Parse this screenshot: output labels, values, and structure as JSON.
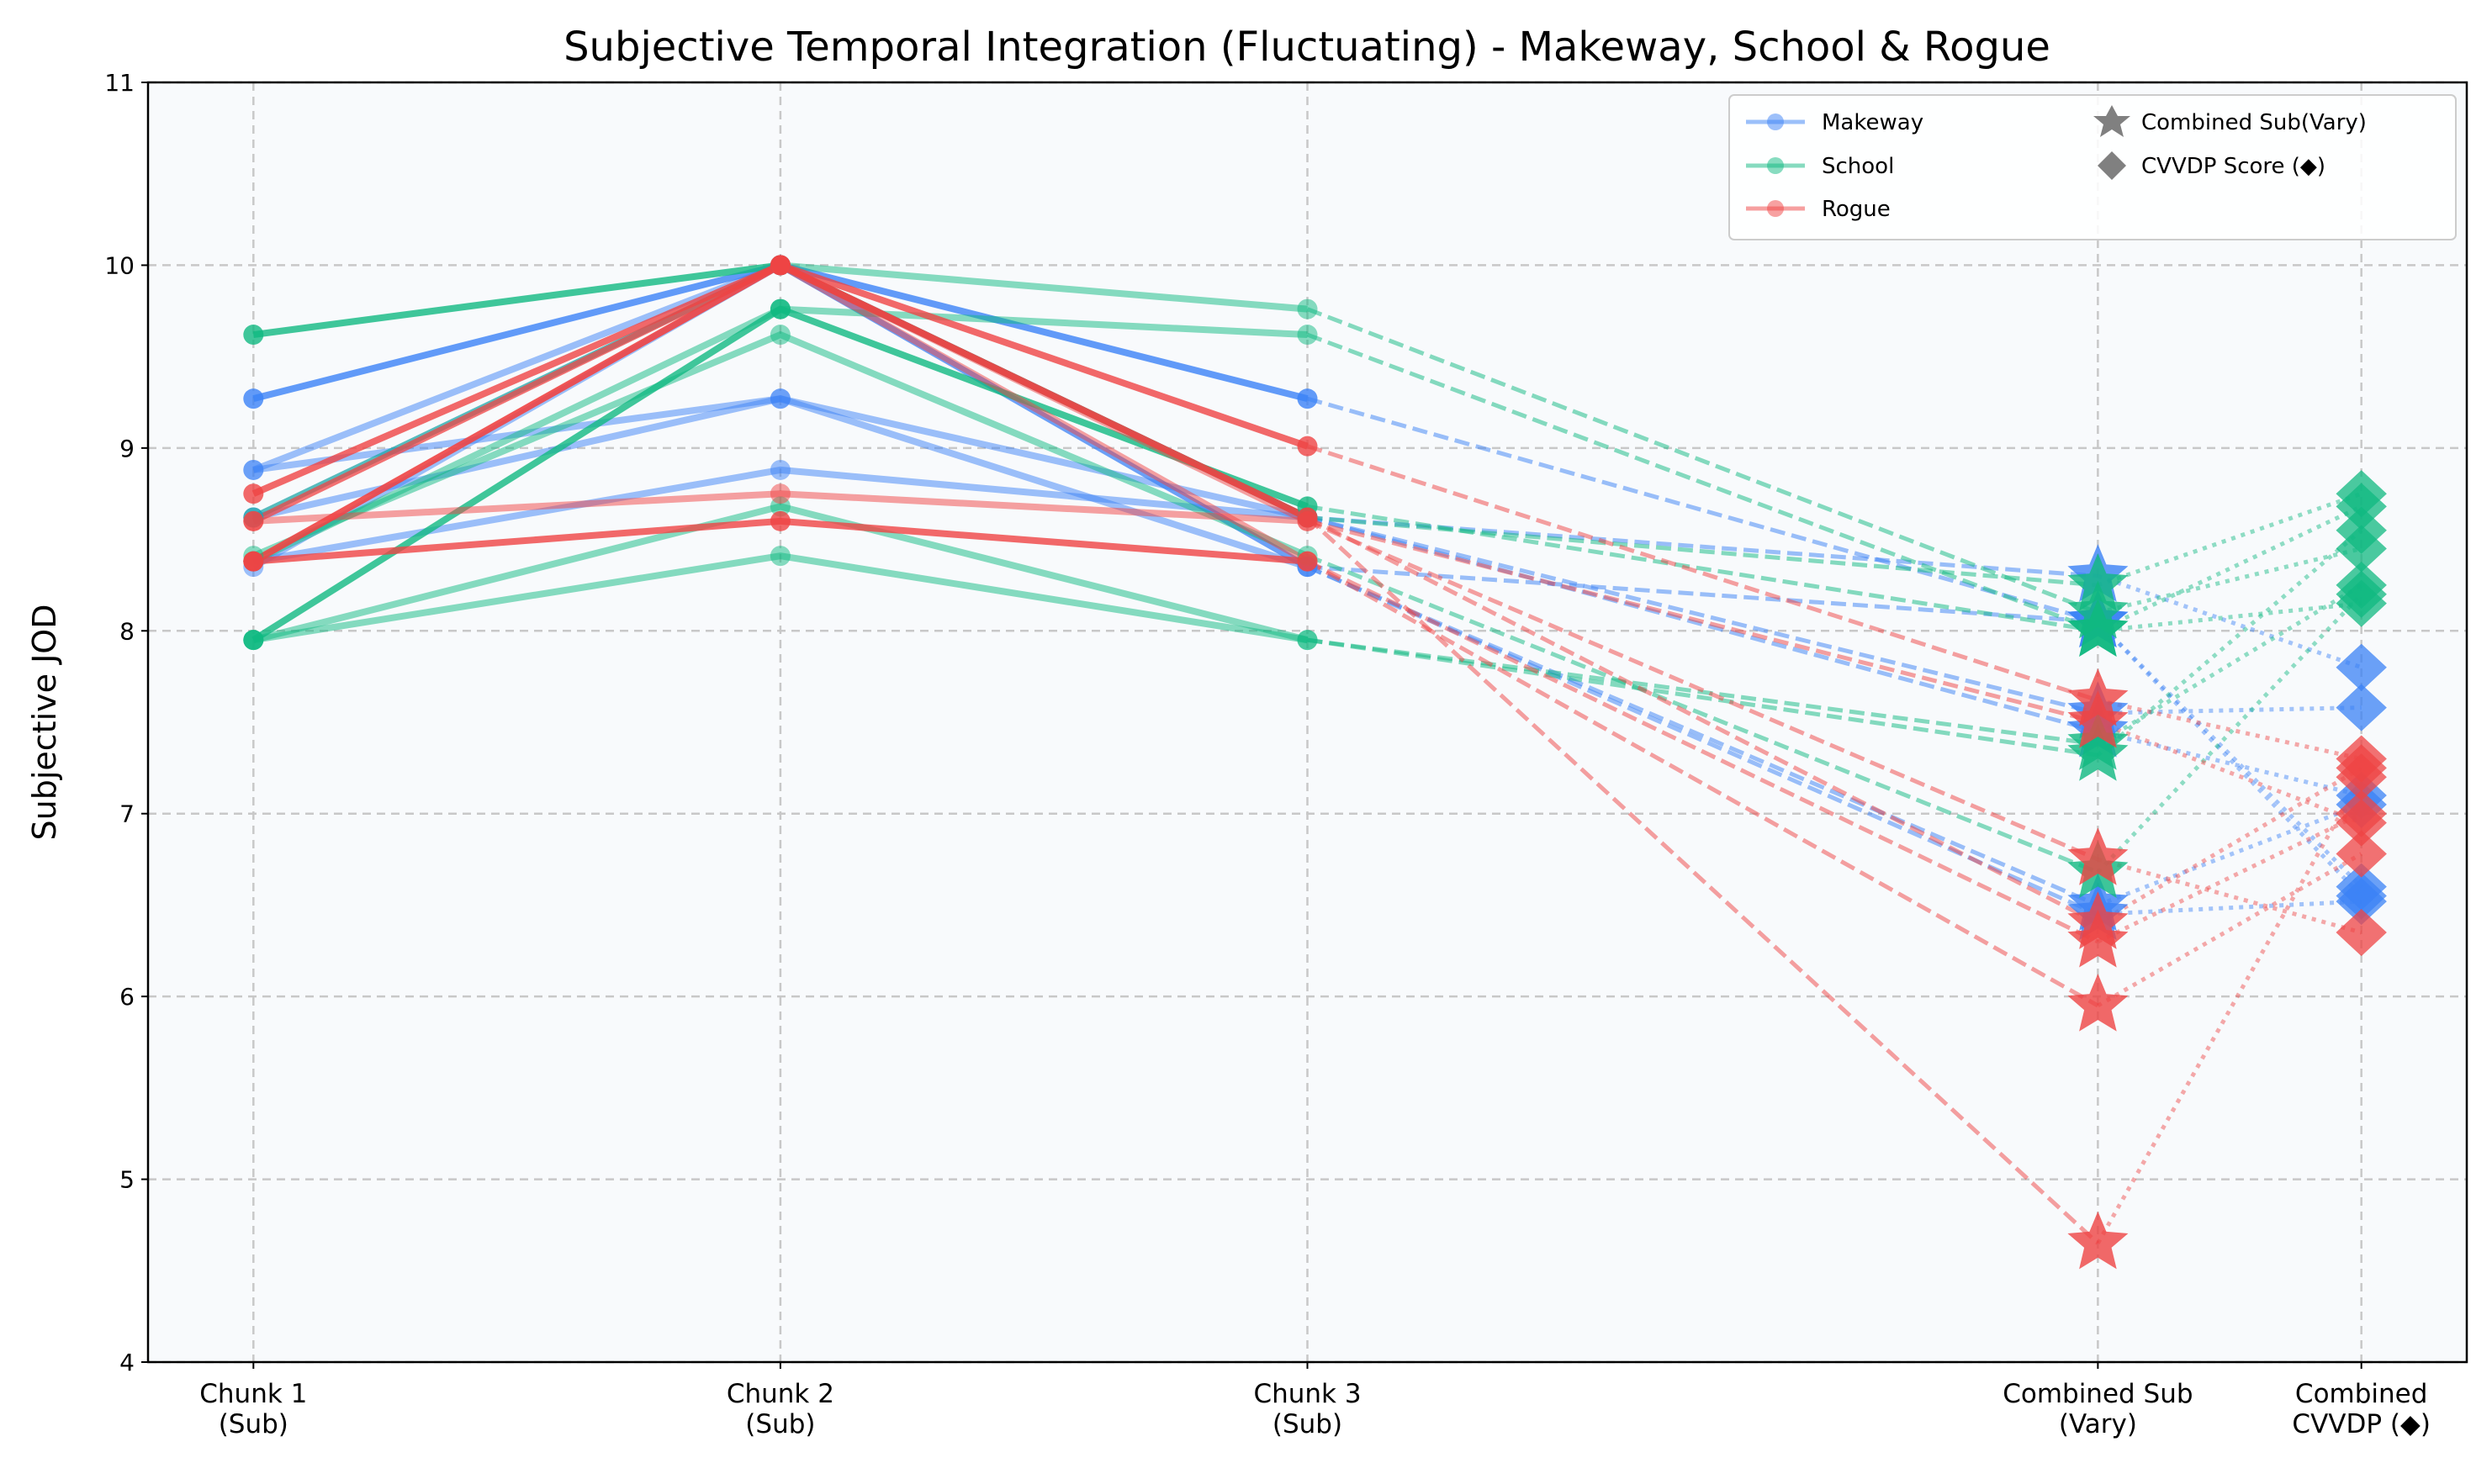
{
  "chart_data": {
    "type": "line",
    "title": "Subjective Temporal Integration (Fluctuating) - Makeway, School & Rogue",
    "xlabel": "",
    "ylabel": "Subjective JOD",
    "ylim": [
      4,
      11
    ],
    "yticks": [
      "4",
      "5",
      "6",
      "7",
      "8",
      "9",
      "10",
      "11"
    ],
    "grid": true,
    "legend_position": "top-right",
    "categories": [
      {
        "pos": 0,
        "lines": [
          "Chunk 1",
          "(Sub)"
        ]
      },
      {
        "pos": 1,
        "lines": [
          "Chunk 2",
          "(Sub)"
        ]
      },
      {
        "pos": 2,
        "lines": [
          "Chunk 3",
          "(Sub)"
        ]
      },
      {
        "pos": 3.5,
        "lines": [
          "Combined Sub",
          "(Vary)"
        ]
      },
      {
        "pos": 4,
        "lines": [
          "Combined",
          "CVVDP (◆)"
        ]
      }
    ],
    "xlim": [
      -0.2,
      4.2
    ],
    "legend": {
      "makeway": "Makeway",
      "school": "School",
      "rogue": "Rogue",
      "combined_sub": "Combined Sub(Vary)",
      "cvvdp": "CVVDP Score (◆)"
    },
    "colors": {
      "Makeway": "#3b82f6",
      "School": "#10b981",
      "Rogue": "#ef4444",
      "grey": "#808080"
    },
    "series": [
      {
        "name": "Makeway",
        "lines": [
          {
            "values": [
              9.27,
              10,
              9.27,
              8.05,
              6.55
            ],
            "strong": true
          },
          {
            "values": [
              8.88,
              10,
              8.62,
              8.3,
              7.8
            ],
            "strong": false
          },
          {
            "values": [
              8.88,
              9.27,
              8.62,
              7.55,
              7.58
            ],
            "strong": false
          },
          {
            "values": [
              8.62,
              9.27,
              8.35,
              6.45,
              6.52
            ],
            "strong": false
          },
          {
            "values": [
              8.38,
              8.88,
              8.62,
              7.45,
              7.1
            ],
            "strong": false
          },
          {
            "values": [
              8.35,
              10,
              8.35,
              8.05,
              6.6
            ],
            "strong": false
          },
          {
            "values": [
              8.62,
              10,
              8.35,
              6.5,
              7.05
            ],
            "strong": false
          }
        ]
      },
      {
        "name": "School",
        "lines": [
          {
            "values": [
              9.62,
              10,
              8.62,
              8.25,
              8.75
            ],
            "strong": true
          },
          {
            "values": [
              7.95,
              9.76,
              8.68,
              8.0,
              8.68
            ],
            "strong": true
          },
          {
            "values": [
              7.95,
              8.41,
              7.95,
              7.32,
              8.55
            ],
            "strong": false
          },
          {
            "values": [
              7.95,
              8.68,
              7.95,
              7.38,
              8.25
            ],
            "strong": false
          },
          {
            "values": [
              8.41,
              9.62,
              8.41,
              6.68,
              8.2
            ],
            "strong": false
          },
          {
            "values": [
              8.62,
              10,
              9.76,
              8.1,
              8.45
            ],
            "strong": false
          },
          {
            "values": [
              8.38,
              9.76,
              9.62,
              8.0,
              8.15
            ],
            "strong": false
          }
        ]
      },
      {
        "name": "Rogue",
        "lines": [
          {
            "values": [
              8.75,
              10,
              9.01,
              7.62,
              7.3
            ],
            "strong": true
          },
          {
            "values": [
              8.38,
              10,
              8.62,
              6.4,
              7.25
            ],
            "strong": true
          },
          {
            "values": [
              8.6,
              8.75,
              8.6,
              7.5,
              6.95
            ],
            "strong": false
          },
          {
            "values": [
              8.38,
              8.6,
              8.38,
              6.3,
              7.0
            ],
            "strong": true
          },
          {
            "values": [
              8.6,
              10,
              8.6,
              6.75,
              6.35
            ],
            "strong": false
          },
          {
            "values": [
              8.6,
              10,
              8.38,
              5.95,
              6.78
            ],
            "strong": false
          },
          {
            "values": [
              8.38,
              10,
              8.62,
              4.65,
              7.2
            ],
            "strong": false
          }
        ]
      }
    ]
  }
}
